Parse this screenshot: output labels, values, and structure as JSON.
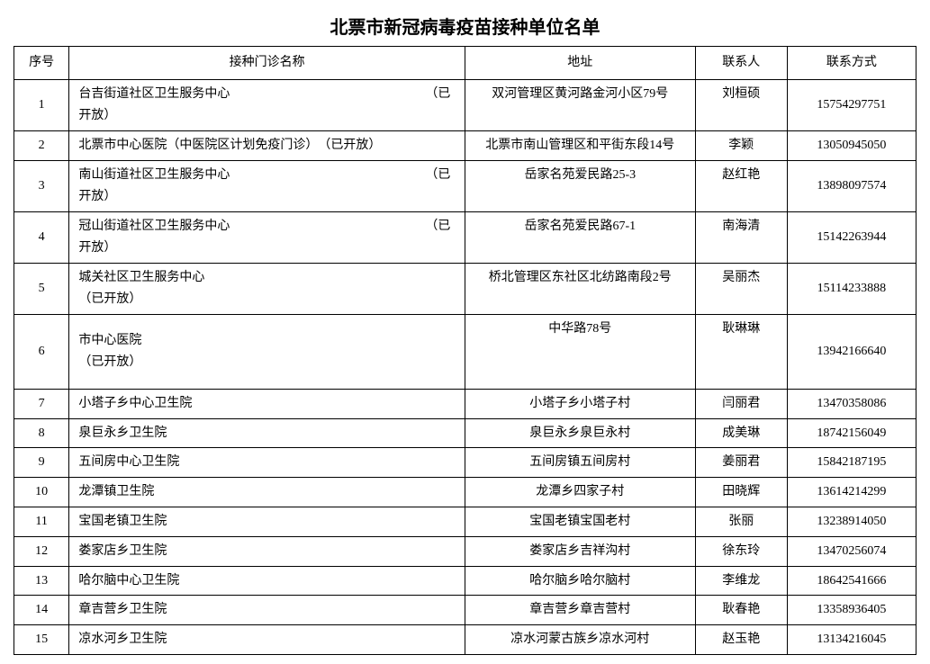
{
  "title": "北票市新冠病毒疫苗接种单位名单",
  "columns": [
    "序号",
    "接种门诊名称",
    "地址",
    "联系人",
    "联系方式"
  ],
  "rows": [
    {
      "seq": "1",
      "name": "台吉街道社区卫生服务中心　　　　　　　　　　　　　　　　（已开放）",
      "addr": "双河管理区黄河路金河小区79号",
      "person": "刘桓硕",
      "phone": "15754297751",
      "rh": "h2"
    },
    {
      "seq": "2",
      "name": "北票市中心医院（中医院区计划免疫门诊）　（已开放）",
      "addr": "北票市南山管理区和平街东段14号",
      "person": "李颖",
      "phone": "13050945050",
      "rh": "h1"
    },
    {
      "seq": "3",
      "name": "南山街道社区卫生服务中心　　　　　　　　　　　　　　　　（已开放）",
      "addr": "岳家名苑爱民路25-3",
      "person": "赵红艳",
      "phone": "13898097574",
      "rh": "h2"
    },
    {
      "seq": "4",
      "name": "冠山街道社区卫生服务中心　　　　　　　　　　　　　　　　（已开放）",
      "addr": "岳家名苑爱民路67-1",
      "person": "南海清",
      "phone": "15142263944",
      "rh": "h2"
    },
    {
      "seq": "5",
      "name": "城关社区卫生服务中心　　　　　　　　　　　　　　　　　　　　　　　　　　　　　　　（已开放）",
      "addr": "桥北管理区东社区北纺路南段2号",
      "person": "吴丽杰",
      "phone": "15114233888",
      "rh": "h2"
    },
    {
      "seq": "6",
      "name": "市中心医院　　　　　　　　　　　　　　　　　　　　　　　　　　　　　　　　　　　　　　　　　　　　　　　　　　　　　　　　　（已开放）",
      "addr": "中华路78号",
      "person": "耿琳琳",
      "phone": "13942166640",
      "rh": "h3"
    },
    {
      "seq": "7",
      "name": "小塔子乡中心卫生院",
      "addr": "小塔子乡小塔子村",
      "person": "闫丽君",
      "phone": "13470358086",
      "rh": "h1"
    },
    {
      "seq": "8",
      "name": "泉巨永乡卫生院",
      "addr": "泉巨永乡泉巨永村",
      "person": "成美琳",
      "phone": "18742156049",
      "rh": "h1"
    },
    {
      "seq": "9",
      "name": "五间房中心卫生院",
      "addr": "五间房镇五间房村",
      "person": "姜丽君",
      "phone": "15842187195",
      "rh": "h1"
    },
    {
      "seq": "10",
      "name": "龙潭镇卫生院",
      "addr": "龙潭乡四家子村",
      "person": "田晓辉",
      "phone": "13614214299",
      "rh": "h1"
    },
    {
      "seq": "11",
      "name": "宝国老镇卫生院",
      "addr": "宝国老镇宝国老村",
      "person": "张丽",
      "phone": "13238914050",
      "rh": "h1"
    },
    {
      "seq": "12",
      "name": "娄家店乡卫生院",
      "addr": "娄家店乡吉祥沟村",
      "person": "徐东玲",
      "phone": "13470256074",
      "rh": "h1"
    },
    {
      "seq": "13",
      "name": "哈尔脑中心卫生院",
      "addr": "哈尔脑乡哈尔脑村",
      "person": "李维龙",
      "phone": "18642541666",
      "rh": "h1"
    },
    {
      "seq": "14",
      "name": "章吉营乡卫生院",
      "addr": "章吉营乡章吉营村",
      "person": "耿春艳",
      "phone": "13358936405",
      "rh": "h1"
    },
    {
      "seq": "15",
      "name": "凉水河乡卫生院",
      "addr": "凉水河蒙古族乡凉水河村",
      "person": "赵玉艳",
      "phone": "13134216045",
      "rh": "h1"
    }
  ]
}
